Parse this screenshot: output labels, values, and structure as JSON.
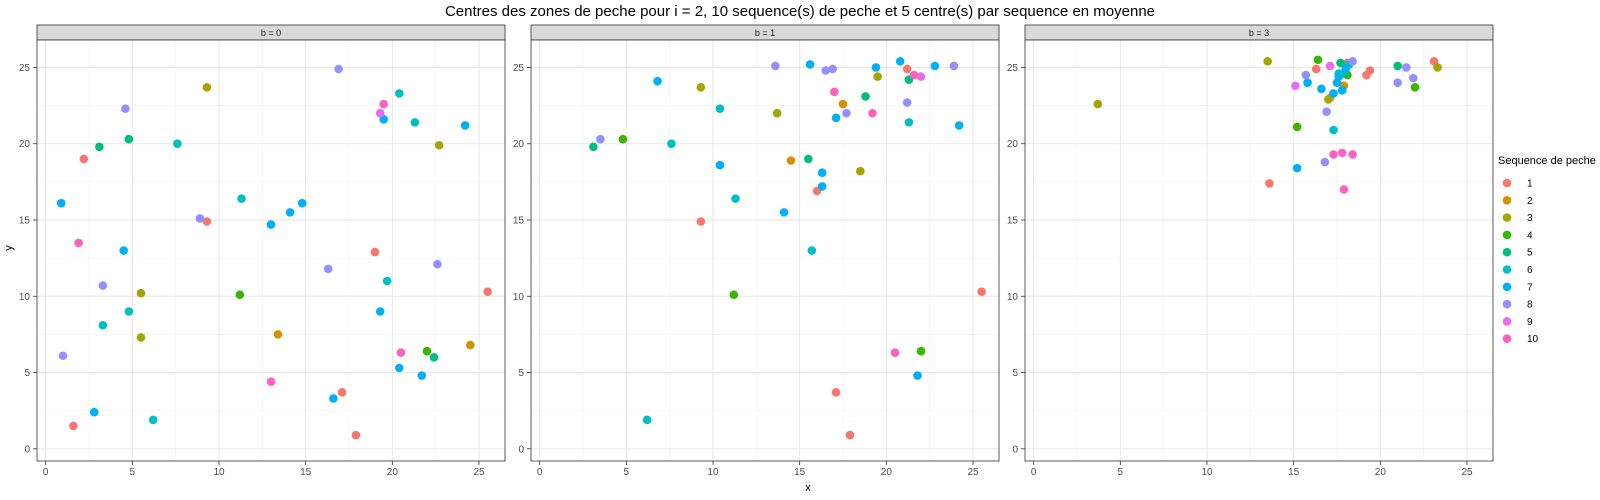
{
  "chart_data": {
    "type": "scatter",
    "title": "Centres des zones de peche pour i = 2, 10 sequence(s) de peche et 5 centre(s) par sequence en moyenne",
    "xlabel": "x",
    "ylabel": "y",
    "xlim": [
      -0.5,
      26.5
    ],
    "ylim": [
      -0.8,
      26.8
    ],
    "x_ticks": [
      0,
      5,
      10,
      15,
      20,
      25
    ],
    "y_ticks": [
      0,
      5,
      10,
      15,
      20,
      25
    ],
    "grid": true,
    "legend": {
      "title": "Sequence de peche",
      "position": "right",
      "entries": [
        {
          "label": "1",
          "color": "#F8766D"
        },
        {
          "label": "2",
          "color": "#D89000"
        },
        {
          "label": "3",
          "color": "#A3A500"
        },
        {
          "label": "4",
          "color": "#39B600"
        },
        {
          "label": "5",
          "color": "#00BF7D"
        },
        {
          "label": "6",
          "color": "#00BFC4"
        },
        {
          "label": "7",
          "color": "#00B0F6"
        },
        {
          "label": "8",
          "color": "#9590FF"
        },
        {
          "label": "9",
          "color": "#E76BF3"
        },
        {
          "label": "10",
          "color": "#FF62BC"
        }
      ]
    },
    "panels": [
      {
        "strip": "b = 0",
        "points": [
          {
            "x": 2.2,
            "y": 19.0,
            "seq": 1
          },
          {
            "x": 9.3,
            "y": 14.9,
            "seq": 1
          },
          {
            "x": 1.6,
            "y": 1.5,
            "seq": 1
          },
          {
            "x": 19.0,
            "y": 12.9,
            "seq": 1
          },
          {
            "x": 25.5,
            "y": 10.3,
            "seq": 1
          },
          {
            "x": 17.1,
            "y": 3.7,
            "seq": 1
          },
          {
            "x": 17.9,
            "y": 0.9,
            "seq": 1
          },
          {
            "x": 13.4,
            "y": 7.5,
            "seq": 2
          },
          {
            "x": 24.5,
            "y": 6.8,
            "seq": 2
          },
          {
            "x": 9.3,
            "y": 23.7,
            "seq": 3
          },
          {
            "x": 22.7,
            "y": 19.9,
            "seq": 3
          },
          {
            "x": 5.5,
            "y": 10.2,
            "seq": 3
          },
          {
            "x": 5.5,
            "y": 7.3,
            "seq": 3
          },
          {
            "x": 11.2,
            "y": 10.1,
            "seq": 4
          },
          {
            "x": 22.0,
            "y": 6.4,
            "seq": 4
          },
          {
            "x": 3.1,
            "y": 19.8,
            "seq": 5
          },
          {
            "x": 4.8,
            "y": 20.3,
            "seq": 5
          },
          {
            "x": 22.4,
            "y": 6.0,
            "seq": 5
          },
          {
            "x": 7.6,
            "y": 20.0,
            "seq": 6
          },
          {
            "x": 11.3,
            "y": 16.4,
            "seq": 6
          },
          {
            "x": 20.4,
            "y": 23.3,
            "seq": 6
          },
          {
            "x": 21.3,
            "y": 21.4,
            "seq": 6
          },
          {
            "x": 19.7,
            "y": 11.0,
            "seq": 6
          },
          {
            "x": 3.3,
            "y": 8.1,
            "seq": 6
          },
          {
            "x": 4.8,
            "y": 9.0,
            "seq": 6
          },
          {
            "x": 6.2,
            "y": 1.9,
            "seq": 6
          },
          {
            "x": 0.9,
            "y": 16.1,
            "seq": 7
          },
          {
            "x": 4.5,
            "y": 13.0,
            "seq": 7
          },
          {
            "x": 13.0,
            "y": 14.7,
            "seq": 7
          },
          {
            "x": 14.1,
            "y": 15.5,
            "seq": 7
          },
          {
            "x": 14.8,
            "y": 16.1,
            "seq": 7
          },
          {
            "x": 19.5,
            "y": 21.6,
            "seq": 7
          },
          {
            "x": 24.2,
            "y": 21.2,
            "seq": 7
          },
          {
            "x": 19.3,
            "y": 9.0,
            "seq": 7
          },
          {
            "x": 20.4,
            "y": 5.3,
            "seq": 7
          },
          {
            "x": 21.7,
            "y": 4.8,
            "seq": 7
          },
          {
            "x": 16.6,
            "y": 3.3,
            "seq": 7
          },
          {
            "x": 2.8,
            "y": 2.4,
            "seq": 7
          },
          {
            "x": 4.6,
            "y": 22.3,
            "seq": 8
          },
          {
            "x": 16.9,
            "y": 24.9,
            "seq": 8
          },
          {
            "x": 8.9,
            "y": 15.1,
            "seq": 8
          },
          {
            "x": 3.3,
            "y": 10.7,
            "seq": 8
          },
          {
            "x": 1.0,
            "y": 6.1,
            "seq": 8
          },
          {
            "x": 16.3,
            "y": 11.8,
            "seq": 8
          },
          {
            "x": 22.6,
            "y": 12.1,
            "seq": 8
          },
          {
            "x": 19.3,
            "y": 22.0,
            "seq": 9
          },
          {
            "x": 19.5,
            "y": 22.6,
            "seq": 10
          },
          {
            "x": 1.9,
            "y": 13.5,
            "seq": 10
          },
          {
            "x": 13.0,
            "y": 4.4,
            "seq": 10
          },
          {
            "x": 20.5,
            "y": 6.3,
            "seq": 10
          }
        ]
      },
      {
        "strip": "b = 1",
        "points": [
          {
            "x": 9.3,
            "y": 14.9,
            "seq": 1
          },
          {
            "x": 16.0,
            "y": 16.9,
            "seq": 1
          },
          {
            "x": 21.2,
            "y": 24.9,
            "seq": 1
          },
          {
            "x": 25.5,
            "y": 10.3,
            "seq": 1
          },
          {
            "x": 17.1,
            "y": 3.7,
            "seq": 1
          },
          {
            "x": 17.9,
            "y": 0.9,
            "seq": 1
          },
          {
            "x": 14.5,
            "y": 18.9,
            "seq": 2
          },
          {
            "x": 17.5,
            "y": 22.6,
            "seq": 2
          },
          {
            "x": 9.3,
            "y": 23.7,
            "seq": 3
          },
          {
            "x": 13.7,
            "y": 22.0,
            "seq": 3
          },
          {
            "x": 19.5,
            "y": 24.4,
            "seq": 3
          },
          {
            "x": 18.5,
            "y": 18.2,
            "seq": 3
          },
          {
            "x": 4.8,
            "y": 20.3,
            "seq": 4
          },
          {
            "x": 11.2,
            "y": 10.1,
            "seq": 4
          },
          {
            "x": 22.0,
            "y": 6.4,
            "seq": 4
          },
          {
            "x": 3.1,
            "y": 19.8,
            "seq": 5
          },
          {
            "x": 15.5,
            "y": 19.0,
            "seq": 5
          },
          {
            "x": 18.8,
            "y": 23.1,
            "seq": 5
          },
          {
            "x": 21.3,
            "y": 24.2,
            "seq": 5
          },
          {
            "x": 7.6,
            "y": 20.0,
            "seq": 6
          },
          {
            "x": 10.4,
            "y": 22.3,
            "seq": 6
          },
          {
            "x": 11.3,
            "y": 16.4,
            "seq": 6
          },
          {
            "x": 15.7,
            "y": 13.0,
            "seq": 6
          },
          {
            "x": 21.3,
            "y": 21.4,
            "seq": 6
          },
          {
            "x": 6.2,
            "y": 1.9,
            "seq": 6
          },
          {
            "x": 6.8,
            "y": 24.1,
            "seq": 7
          },
          {
            "x": 10.4,
            "y": 18.6,
            "seq": 7
          },
          {
            "x": 14.1,
            "y": 15.5,
            "seq": 7
          },
          {
            "x": 15.6,
            "y": 25.2,
            "seq": 7
          },
          {
            "x": 16.3,
            "y": 18.1,
            "seq": 7
          },
          {
            "x": 16.3,
            "y": 17.2,
            "seq": 7
          },
          {
            "x": 17.1,
            "y": 21.7,
            "seq": 7
          },
          {
            "x": 19.4,
            "y": 25.0,
            "seq": 7
          },
          {
            "x": 20.8,
            "y": 25.4,
            "seq": 7
          },
          {
            "x": 22.8,
            "y": 25.1,
            "seq": 7
          },
          {
            "x": 24.2,
            "y": 21.2,
            "seq": 7
          },
          {
            "x": 21.8,
            "y": 4.8,
            "seq": 7
          },
          {
            "x": 3.5,
            "y": 20.3,
            "seq": 8
          },
          {
            "x": 13.6,
            "y": 25.1,
            "seq": 8
          },
          {
            "x": 16.5,
            "y": 24.8,
            "seq": 8
          },
          {
            "x": 16.9,
            "y": 24.9,
            "seq": 8
          },
          {
            "x": 17.7,
            "y": 22.0,
            "seq": 8
          },
          {
            "x": 21.2,
            "y": 22.7,
            "seq": 8
          },
          {
            "x": 23.9,
            "y": 25.1,
            "seq": 8
          },
          {
            "x": 22.0,
            "y": 24.4,
            "seq": 9
          },
          {
            "x": 17.0,
            "y": 23.4,
            "seq": 10
          },
          {
            "x": 19.2,
            "y": 22.0,
            "seq": 10
          },
          {
            "x": 21.6,
            "y": 24.5,
            "seq": 10
          },
          {
            "x": 20.5,
            "y": 6.3,
            "seq": 10
          }
        ]
      },
      {
        "strip": "b = 3",
        "points": [
          {
            "x": 13.6,
            "y": 17.4,
            "seq": 1
          },
          {
            "x": 16.3,
            "y": 24.9,
            "seq": 1
          },
          {
            "x": 17.1,
            "y": 23.0,
            "seq": 1
          },
          {
            "x": 18.1,
            "y": 25.3,
            "seq": 1
          },
          {
            "x": 19.2,
            "y": 24.5,
            "seq": 1
          },
          {
            "x": 19.4,
            "y": 24.8,
            "seq": 1
          },
          {
            "x": 23.1,
            "y": 25.4,
            "seq": 1
          },
          {
            "x": 17.9,
            "y": 23.8,
            "seq": 2
          },
          {
            "x": 3.7,
            "y": 22.6,
            "seq": 3
          },
          {
            "x": 13.5,
            "y": 25.4,
            "seq": 3
          },
          {
            "x": 17.0,
            "y": 22.9,
            "seq": 3
          },
          {
            "x": 23.3,
            "y": 25.0,
            "seq": 3
          },
          {
            "x": 15.2,
            "y": 21.1,
            "seq": 4
          },
          {
            "x": 16.4,
            "y": 25.5,
            "seq": 4
          },
          {
            "x": 18.1,
            "y": 24.5,
            "seq": 4
          },
          {
            "x": 22.0,
            "y": 23.7,
            "seq": 4
          },
          {
            "x": 17.7,
            "y": 25.3,
            "seq": 5
          },
          {
            "x": 18.0,
            "y": 24.9,
            "seq": 5
          },
          {
            "x": 17.9,
            "y": 24.6,
            "seq": 5
          },
          {
            "x": 21.0,
            "y": 25.1,
            "seq": 5
          },
          {
            "x": 17.3,
            "y": 20.9,
            "seq": 6
          },
          {
            "x": 17.6,
            "y": 24.6,
            "seq": 6
          },
          {
            "x": 18.2,
            "y": 25.2,
            "seq": 6
          },
          {
            "x": 15.2,
            "y": 18.4,
            "seq": 7
          },
          {
            "x": 15.8,
            "y": 24.0,
            "seq": 7
          },
          {
            "x": 16.6,
            "y": 23.6,
            "seq": 7
          },
          {
            "x": 17.3,
            "y": 23.3,
            "seq": 7
          },
          {
            "x": 17.5,
            "y": 24.0,
            "seq": 7
          },
          {
            "x": 17.6,
            "y": 24.4,
            "seq": 7
          },
          {
            "x": 17.8,
            "y": 23.5,
            "seq": 7
          },
          {
            "x": 18.0,
            "y": 24.9,
            "seq": 7
          },
          {
            "x": 15.7,
            "y": 24.5,
            "seq": 8
          },
          {
            "x": 16.9,
            "y": 22.1,
            "seq": 8
          },
          {
            "x": 16.8,
            "y": 18.8,
            "seq": 8
          },
          {
            "x": 21.0,
            "y": 24.0,
            "seq": 8
          },
          {
            "x": 21.5,
            "y": 25.0,
            "seq": 8
          },
          {
            "x": 21.9,
            "y": 24.3,
            "seq": 8
          },
          {
            "x": 18.4,
            "y": 25.4,
            "seq": 8
          },
          {
            "x": 15.1,
            "y": 23.8,
            "seq": 9
          },
          {
            "x": 17.1,
            "y": 25.1,
            "seq": 9
          },
          {
            "x": 17.3,
            "y": 19.3,
            "seq": 10
          },
          {
            "x": 17.8,
            "y": 19.4,
            "seq": 10
          },
          {
            "x": 18.4,
            "y": 19.3,
            "seq": 10
          },
          {
            "x": 17.9,
            "y": 17.0,
            "seq": 10
          }
        ]
      }
    ]
  }
}
